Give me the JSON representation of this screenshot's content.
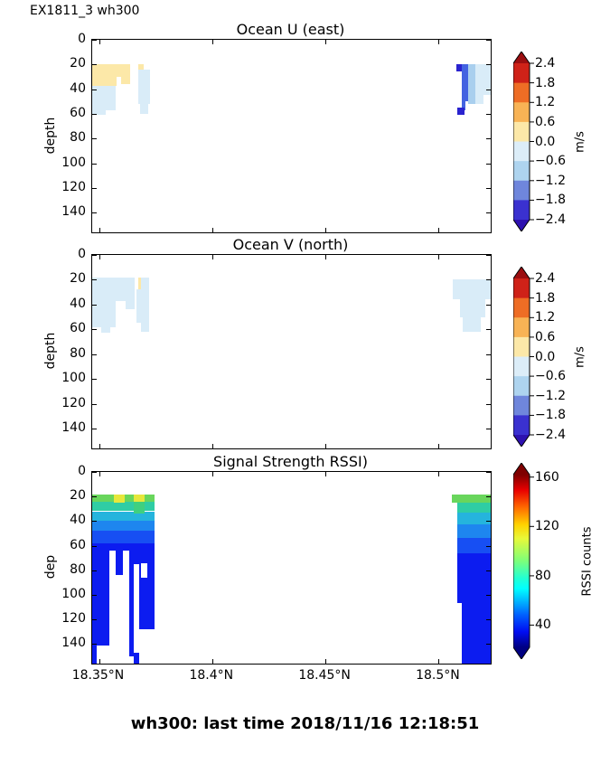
{
  "figure_label": "EX1811_3 wh300",
  "footer_caption": "wh300: last time 2018/11/16 12:18:51",
  "palette": {
    "cream": "#fce8a8",
    "pale": "#d9ecf8",
    "light": "#a9cfee",
    "royal": "#4363e1",
    "navy": "#2a23cf",
    "jyellow": "#e6e73b",
    "jgreen": "#69d65c",
    "jgreen2": "#3fd07f",
    "jteal": "#2fcda4",
    "jcyan": "#25b4dd",
    "jsky": "#1e86ef",
    "jblue1": "#174ff3",
    "jblue2": "#0c1cf0",
    "white": "#ffffff"
  },
  "chart_data": [
    {
      "type": "heatmap",
      "name": "ocean-u-east",
      "title": "Ocean U (east)",
      "ylabel": "depth",
      "xlim": [
        18.347,
        18.523
      ],
      "ylim": [
        0,
        156
      ],
      "y_ticks": [
        0,
        20,
        40,
        60,
        80,
        100,
        120,
        140
      ],
      "x_ticks": [
        {
          "v": 18.35,
          "label": "18.35°N"
        },
        {
          "v": 18.4,
          "label": "18.4°N"
        },
        {
          "v": 18.45,
          "label": "18.45°N"
        },
        {
          "v": 18.5,
          "label": "18.5°N"
        }
      ],
      "show_x_labels": false,
      "colorbar": {
        "style": "discrete",
        "label": "m/s",
        "tick_labels": [
          "2.4",
          "1.8",
          "1.2",
          "0.6",
          "0.0",
          "−0.6",
          "−1.2",
          "−1.8",
          "−2.4"
        ],
        "segment_colors": [
          "#cf2218",
          "#ee6d25",
          "#f8b355",
          "#fce8a8",
          "#dcedf8",
          "#aed4ef",
          "#6f86dc",
          "#3a31d0"
        ],
        "arrow_top": "#9b0e10",
        "arrow_bottom": "#2d11b0"
      },
      "regions": [
        {
          "c": "cream",
          "fx0": 0.0,
          "fx1": 0.095,
          "d0": 20,
          "d1": 30
        },
        {
          "c": "cream",
          "fx0": 0.0,
          "fx1": 0.06,
          "d0": 30,
          "d1": 37
        },
        {
          "c": "cream",
          "fx0": 0.073,
          "fx1": 0.095,
          "d0": 30,
          "d1": 36
        },
        {
          "c": "pale",
          "fx0": 0.0,
          "fx1": 0.058,
          "d0": 37,
          "d1": 57
        },
        {
          "c": "pale",
          "fx0": 0.0,
          "fx1": 0.034,
          "d0": 57,
          "d1": 61
        },
        {
          "c": "cream",
          "fx0": 0.115,
          "fx1": 0.13,
          "d0": 20,
          "d1": 24
        },
        {
          "c": "pale",
          "fx0": 0.115,
          "fx1": 0.145,
          "d0": 24,
          "d1": 52
        },
        {
          "c": "pale",
          "fx0": 0.12,
          "fx1": 0.14,
          "d0": 52,
          "d1": 60
        },
        {
          "c": "navy",
          "fx0": 0.914,
          "fx1": 0.927,
          "d0": 20,
          "d1": 26
        },
        {
          "c": "royal",
          "fx0": 0.927,
          "fx1": 0.943,
          "d0": 20,
          "d1": 50
        },
        {
          "c": "royal",
          "fx0": 0.927,
          "fx1": 0.936,
          "d0": 50,
          "d1": 57
        },
        {
          "c": "navy",
          "fx0": 0.916,
          "fx1": 0.934,
          "d0": 55,
          "d1": 61
        },
        {
          "c": "light",
          "fx0": 0.943,
          "fx1": 0.961,
          "d0": 20,
          "d1": 52
        },
        {
          "c": "pale",
          "fx0": 0.961,
          "fx1": 1.0,
          "d0": 20,
          "d1": 45
        },
        {
          "c": "pale",
          "fx0": 0.961,
          "fx1": 0.982,
          "d0": 45,
          "d1": 52
        }
      ]
    },
    {
      "type": "heatmap",
      "name": "ocean-v-north",
      "title": "Ocean V (north)",
      "ylabel": "depth",
      "xlim": [
        18.347,
        18.523
      ],
      "ylim": [
        0,
        156
      ],
      "y_ticks": [
        0,
        20,
        40,
        60,
        80,
        100,
        120,
        140
      ],
      "x_ticks": [
        {
          "v": 18.35,
          "label": "18.35°N"
        },
        {
          "v": 18.4,
          "label": "18.4°N"
        },
        {
          "v": 18.45,
          "label": "18.45°N"
        },
        {
          "v": 18.5,
          "label": "18.5°N"
        }
      ],
      "show_x_labels": false,
      "colorbar": {
        "style": "discrete",
        "label": "m/s",
        "tick_labels": [
          "2.4",
          "1.8",
          "1.2",
          "0.6",
          "0.0",
          "−0.6",
          "−1.2",
          "−1.8",
          "−2.4"
        ],
        "segment_colors": [
          "#cf2218",
          "#ee6d25",
          "#f8b355",
          "#fce8a8",
          "#dcedf8",
          "#aed4ef",
          "#6f86dc",
          "#3a31d0"
        ],
        "arrow_top": "#9b0e10",
        "arrow_bottom": "#2d11b0"
      },
      "regions": [
        {
          "c": "pale",
          "fx0": 0.0,
          "fx1": 0.107,
          "d0": 18,
          "d1": 37
        },
        {
          "c": "pale",
          "fx0": 0.0,
          "fx1": 0.058,
          "d0": 37,
          "d1": 58
        },
        {
          "c": "pale",
          "fx0": 0.023,
          "fx1": 0.045,
          "d0": 58,
          "d1": 63
        },
        {
          "c": "pale",
          "fx0": 0.084,
          "fx1": 0.107,
          "d0": 37,
          "d1": 44
        },
        {
          "c": "cream",
          "fx0": 0.116,
          "fx1": 0.122,
          "d0": 18,
          "d1": 28
        },
        {
          "c": "pale",
          "fx0": 0.122,
          "fx1": 0.143,
          "d0": 18,
          "d1": 62
        },
        {
          "c": "pale",
          "fx0": 0.112,
          "fx1": 0.122,
          "d0": 28,
          "d1": 55
        },
        {
          "c": "pale",
          "fx0": 0.905,
          "fx1": 1.0,
          "d0": 20,
          "d1": 36
        },
        {
          "c": "pale",
          "fx0": 0.922,
          "fx1": 0.986,
          "d0": 36,
          "d1": 50
        },
        {
          "c": "pale",
          "fx0": 0.93,
          "fx1": 0.975,
          "d0": 50,
          "d1": 62
        }
      ]
    },
    {
      "type": "heatmap",
      "name": "signal-strength-rssi",
      "title": "Signal Strength RSSI)",
      "ylabel": "dep",
      "xlim": [
        18.347,
        18.523
      ],
      "ylim": [
        0,
        156
      ],
      "y_ticks": [
        0,
        20,
        40,
        60,
        80,
        100,
        120,
        140
      ],
      "x_ticks": [
        {
          "v": 18.35,
          "label": "18.35°N"
        },
        {
          "v": 18.4,
          "label": "18.4°N"
        },
        {
          "v": 18.45,
          "label": "18.45°N"
        },
        {
          "v": 18.5,
          "label": "18.5°N"
        }
      ],
      "show_x_labels": true,
      "colorbar": {
        "style": "gradient",
        "label": "RSSI counts",
        "tick_labels": [
          "160",
          "120",
          "80",
          "40"
        ],
        "tick_values": [
          160,
          120,
          80,
          40
        ],
        "range": [
          22,
          162
        ],
        "gradient_stops": [
          [
            "#7f0000",
            0
          ],
          [
            "#e90000",
            9
          ],
          [
            "#ff6a00",
            19
          ],
          [
            "#ffd300",
            29
          ],
          [
            "#e8f939",
            37
          ],
          [
            "#7dff7a",
            50
          ],
          [
            "#22ffd3",
            60
          ],
          [
            "#00ffff",
            66
          ],
          [
            "#00a4ff",
            75
          ],
          [
            "#0062ff",
            81
          ],
          [
            "#000df2",
            91
          ],
          [
            "#000082",
            100
          ]
        ],
        "arrow_top": "#7f0000",
        "arrow_bottom": "#000082"
      },
      "regions": [
        {
          "c": "jgreen",
          "fx0": 0.0,
          "fx1": 0.157,
          "d0": 18,
          "d1": 24
        },
        {
          "c": "jteal",
          "fx0": 0.0,
          "fx1": 0.157,
          "d0": 24,
          "d1": 32
        },
        {
          "c": "jcyan",
          "fx0": 0.0,
          "fx1": 0.157,
          "d0": 32,
          "d1": 40
        },
        {
          "c": "jsky",
          "fx0": 0.0,
          "fx1": 0.157,
          "d0": 40,
          "d1": 48
        },
        {
          "c": "jblue1",
          "fx0": 0.0,
          "fx1": 0.157,
          "d0": 48,
          "d1": 58
        },
        {
          "c": "jblue2",
          "fx0": 0.0,
          "fx1": 0.157,
          "d0": 58,
          "d1": 156
        },
        {
          "c": "jyellow",
          "fx0": 0.055,
          "fx1": 0.082,
          "d0": 18,
          "d1": 25
        },
        {
          "c": "jyellow",
          "fx0": 0.104,
          "fx1": 0.131,
          "d0": 18,
          "d1": 24
        },
        {
          "c": "jgreen2",
          "fx0": 0.104,
          "fx1": 0.131,
          "d0": 24,
          "d1": 34
        },
        {
          "c": "white",
          "fx0": 0.011,
          "fx1": 0.043,
          "d0": 141,
          "d1": 156
        },
        {
          "c": "white",
          "fx0": 0.043,
          "fx1": 0.093,
          "d0": 64,
          "d1": 156
        },
        {
          "c": "jblue2",
          "fx0": 0.059,
          "fx1": 0.077,
          "d0": 64,
          "d1": 84
        },
        {
          "c": "white",
          "fx0": 0.093,
          "fx1": 0.104,
          "d0": 150,
          "d1": 156
        },
        {
          "c": "white",
          "fx0": 0.104,
          "fx1": 0.118,
          "d0": 75,
          "d1": 147
        },
        {
          "c": "white",
          "fx0": 0.122,
          "fx1": 0.138,
          "d0": 74,
          "d1": 86
        },
        {
          "c": "white",
          "fx0": 0.118,
          "fx1": 0.157,
          "d0": 128,
          "d1": 156
        },
        {
          "c": "jgreen",
          "fx0": 0.903,
          "fx1": 1.0,
          "d0": 18,
          "d1": 25
        },
        {
          "c": "jteal",
          "fx0": 0.916,
          "fx1": 1.0,
          "d0": 25,
          "d1": 33
        },
        {
          "c": "jcyan",
          "fx0": 0.916,
          "fx1": 1.0,
          "d0": 33,
          "d1": 43
        },
        {
          "c": "jsky",
          "fx0": 0.916,
          "fx1": 1.0,
          "d0": 43,
          "d1": 54
        },
        {
          "c": "jblue1",
          "fx0": 0.916,
          "fx1": 1.0,
          "d0": 54,
          "d1": 66
        },
        {
          "c": "jblue2",
          "fx0": 0.916,
          "fx1": 1.0,
          "d0": 66,
          "d1": 107
        },
        {
          "c": "jblue2",
          "fx0": 0.927,
          "fx1": 1.0,
          "d0": 107,
          "d1": 156
        }
      ]
    }
  ]
}
